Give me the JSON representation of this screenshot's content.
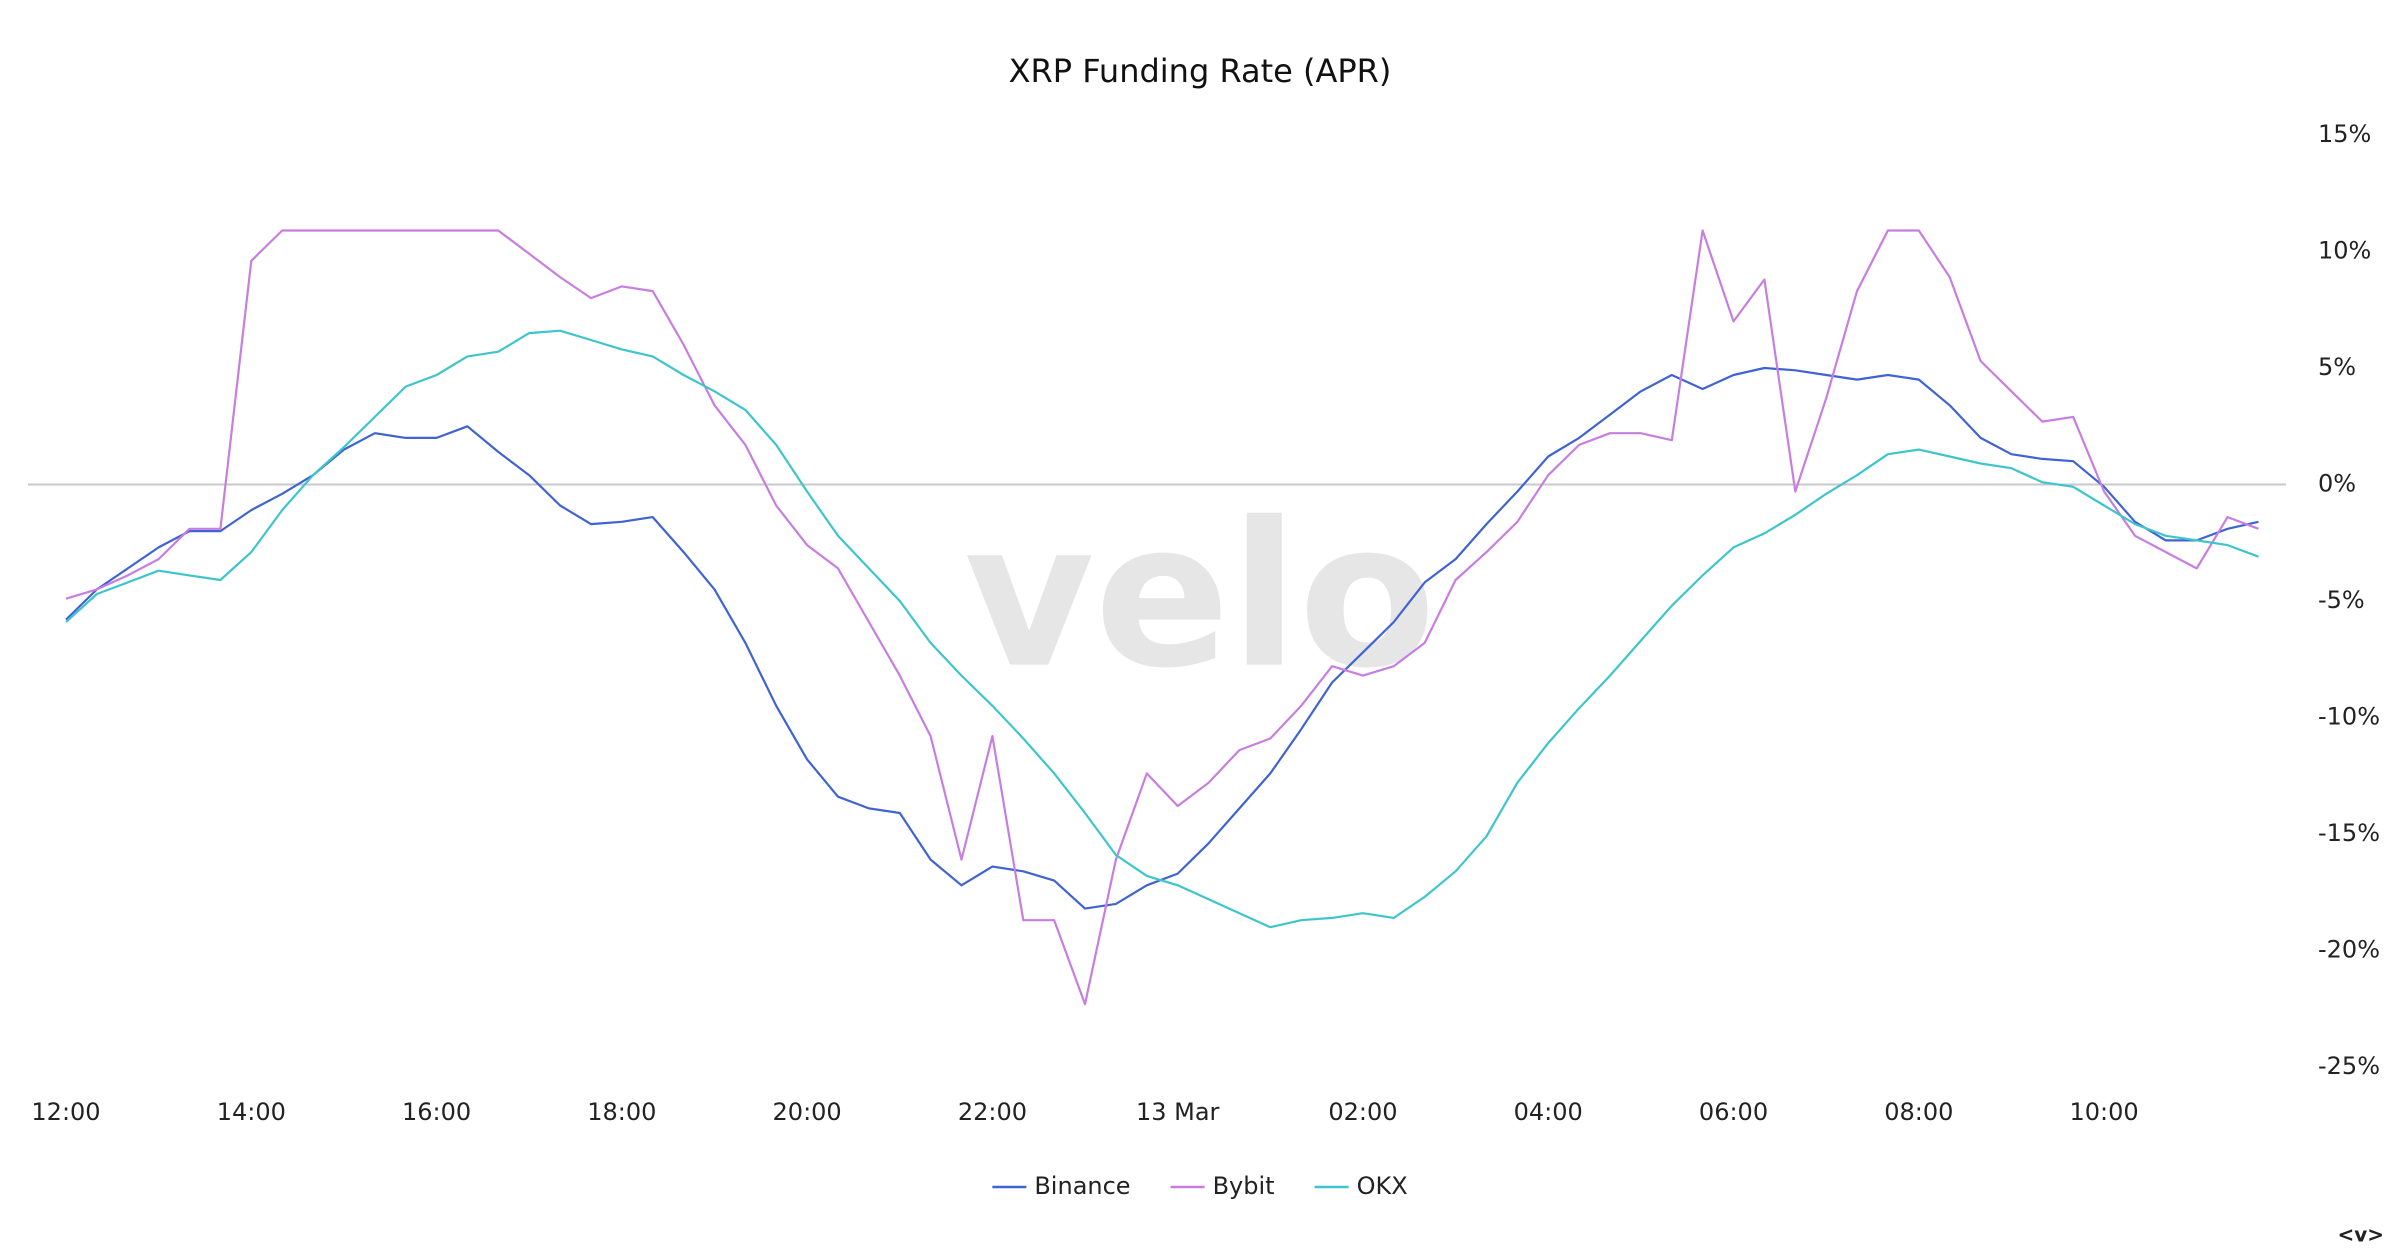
{
  "chart_data": {
    "type": "line",
    "title": "XRP Funding Rate (APR)",
    "watermark": "velo",
    "corner_label": "<v>",
    "categories": [
      "12:00",
      null,
      null,
      null,
      null,
      null,
      "14:00",
      null,
      null,
      null,
      null,
      null,
      "16:00",
      null,
      null,
      null,
      null,
      null,
      "18:00",
      null,
      null,
      null,
      null,
      null,
      "20:00",
      null,
      null,
      null,
      null,
      null,
      "22:00",
      null,
      null,
      null,
      null,
      null,
      "13 Mar",
      null,
      null,
      null,
      null,
      null,
      "02:00",
      null,
      null,
      null,
      null,
      null,
      "04:00",
      null,
      null,
      null,
      null,
      null,
      "06:00",
      null,
      null,
      null,
      null,
      null,
      "08:00",
      null,
      null,
      null,
      null,
      null,
      "10:00",
      null,
      null,
      null,
      null,
      null
    ],
    "series": [
      {
        "name": "Binance",
        "color": "#3f63d2",
        "values": [
          -5.8,
          -4.5,
          -3.6,
          -2.7,
          -2.0,
          -2.0,
          -1.1,
          -0.4,
          0.4,
          1.5,
          2.2,
          2.0,
          2.0,
          2.5,
          1.4,
          0.4,
          -0.9,
          -1.7,
          -1.6,
          -1.4,
          -2.9,
          -4.5,
          -6.8,
          -9.5,
          -11.8,
          -13.4,
          -13.9,
          -14.1,
          -16.1,
          -17.2,
          -16.4,
          -16.6,
          -17.0,
          -18.2,
          -18.0,
          -17.2,
          -16.7,
          -15.4,
          -13.9,
          -12.4,
          -10.5,
          -8.5,
          -7.2,
          -5.9,
          -4.2,
          -3.2,
          -1.7,
          -0.3,
          1.2,
          2.0,
          3.0,
          4.0,
          4.7,
          4.1,
          4.7,
          5.0,
          4.9,
          4.7,
          4.5,
          4.7,
          4.5,
          3.4,
          2.0,
          1.3,
          1.1,
          1.0,
          -0.1,
          -1.6,
          -2.4,
          -2.4,
          -1.9,
          -1.6
        ]
      },
      {
        "name": "Bybit",
        "color": "#c77ee0",
        "values": [
          -4.9,
          -4.5,
          -3.9,
          -3.2,
          -1.9,
          -1.9,
          9.6,
          10.9,
          10.9,
          10.9,
          10.9,
          10.9,
          10.9,
          10.9,
          10.9,
          9.9,
          8.9,
          8.0,
          8.5,
          8.3,
          6.0,
          3.4,
          1.7,
          -0.9,
          -2.6,
          -3.6,
          -5.9,
          -8.2,
          -10.8,
          -16.1,
          -10.8,
          -18.7,
          -18.7,
          -22.3,
          -16.1,
          -12.4,
          -13.8,
          -12.8,
          -11.4,
          -10.9,
          -9.5,
          -7.8,
          -8.2,
          -7.8,
          -6.8,
          -4.1,
          -2.9,
          -1.6,
          0.4,
          1.7,
          2.2,
          2.2,
          1.9,
          10.9,
          7.0,
          8.8,
          -0.3,
          3.7,
          8.3,
          10.9,
          10.9,
          8.9,
          5.3,
          4.0,
          2.7,
          2.9,
          -0.3,
          -2.2,
          -2.9,
          -3.6,
          -1.4,
          -1.9
        ]
      },
      {
        "name": "OKX",
        "color": "#3ec5cc",
        "values": [
          -5.9,
          -4.7,
          -4.2,
          -3.7,
          -3.9,
          -4.1,
          -2.9,
          -1.1,
          0.4,
          1.6,
          2.9,
          4.2,
          4.7,
          5.5,
          5.7,
          6.5,
          6.6,
          6.2,
          5.8,
          5.5,
          4.7,
          4.0,
          3.2,
          1.7,
          -0.3,
          -2.2,
          -3.6,
          -5.0,
          -6.8,
          -8.2,
          -9.5,
          -10.9,
          -12.4,
          -14.1,
          -15.9,
          -16.8,
          -17.2,
          -17.8,
          -18.4,
          -19.0,
          -18.7,
          -18.6,
          -18.4,
          -18.6,
          -17.7,
          -16.6,
          -15.1,
          -12.8,
          -11.1,
          -9.6,
          -8.2,
          -6.7,
          -5.2,
          -3.9,
          -2.7,
          -2.1,
          -1.3,
          -0.4,
          0.4,
          1.3,
          1.5,
          1.2,
          0.9,
          0.7,
          0.1,
          -0.1,
          -0.9,
          -1.7,
          -2.2,
          -2.4,
          -2.6,
          -3.1
        ]
      }
    ],
    "ylim": [
      -25,
      15
    ],
    "yticks": [
      {
        "value": 15,
        "label": "15%"
      },
      {
        "value": 10,
        "label": "10%"
      },
      {
        "value": 5,
        "label": "5%"
      },
      {
        "value": 0,
        "label": "0%"
      },
      {
        "value": -5,
        "label": "-5%"
      },
      {
        "value": -10,
        "label": "-10%"
      },
      {
        "value": -15,
        "label": "-15%"
      },
      {
        "value": -20,
        "label": "-20%"
      },
      {
        "value": -25,
        "label": "-25%"
      }
    ],
    "grid": false,
    "zero_line": true,
    "legend": "bottom"
  }
}
